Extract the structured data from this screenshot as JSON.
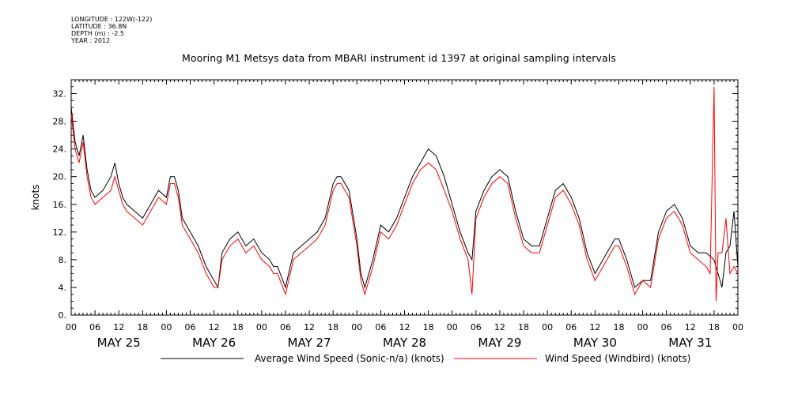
{
  "header": {
    "longitude": "LONGITUDE : 122W(-122)",
    "latitude": "LATITUDE : 36.8N",
    "depth": "DEPTH (m) : -2.5",
    "year": "YEAR : 2012"
  },
  "chart_data": {
    "type": "line",
    "title": "Mooring M1 Metsys data from MBARI instrument id 1397 at original sampling intervals",
    "ylabel": "knots",
    "xlabel": "",
    "ylim": [
      0,
      34
    ],
    "xlim_hours": [
      0,
      168
    ],
    "yticks": [
      "0.",
      "4.",
      "8.",
      "12.",
      "16.",
      "20.",
      "24.",
      "28.",
      "32."
    ],
    "yticks_values": [
      0,
      4,
      8,
      12,
      16,
      20,
      24,
      28,
      32
    ],
    "hour_ticks": [
      "00",
      "06",
      "12",
      "18",
      "00",
      "06",
      "12",
      "18",
      "00",
      "06",
      "12",
      "18",
      "00",
      "06",
      "12",
      "18",
      "00",
      "06",
      "12",
      "18",
      "00",
      "06",
      "12",
      "18",
      "00",
      "06",
      "12",
      "18",
      "00"
    ],
    "days": [
      "MAY 25",
      "MAY 26",
      "MAY 27",
      "MAY 28",
      "MAY 29",
      "MAY 30",
      "MAY 31"
    ],
    "grid": false,
    "legend_position": "bottom",
    "series": [
      {
        "name": "Average Wind Speed (Sonic-n/a) (knots)",
        "color": "#000000",
        "x": [
          0,
          1,
          2,
          3,
          4,
          5,
          6,
          8,
          10,
          11,
          12,
          13,
          14,
          16,
          18,
          20,
          22,
          24,
          25,
          26,
          27,
          28,
          30,
          32,
          34,
          36,
          37,
          38,
          40,
          42,
          44,
          46,
          48,
          50,
          51,
          52,
          54,
          56,
          58,
          60,
          62,
          64,
          66,
          67,
          68,
          70,
          72,
          73,
          74,
          76,
          78,
          80,
          82,
          84,
          86,
          88,
          90,
          92,
          94,
          96,
          98,
          100,
          101,
          102,
          104,
          106,
          108,
          110,
          112,
          114,
          116,
          118,
          120,
          122,
          124,
          126,
          128,
          130,
          132,
          134,
          136,
          137,
          138,
          140,
          142,
          144,
          146,
          148,
          150,
          152,
          154,
          156,
          158,
          160,
          162,
          163,
          164,
          165,
          166,
          167,
          168
        ],
        "y": [
          30,
          25,
          23,
          26,
          21,
          18,
          17,
          18,
          20,
          22,
          19,
          17,
          16,
          15,
          14,
          16,
          18,
          17,
          20,
          20,
          18,
          14,
          12,
          10,
          7,
          5,
          4,
          9,
          11,
          12,
          10,
          11,
          9,
          8,
          7,
          7,
          4,
          9,
          10,
          11,
          12,
          14,
          19,
          20,
          20,
          18,
          11,
          6,
          4,
          8,
          13,
          12,
          14,
          17,
          20,
          22,
          24,
          23,
          20,
          16,
          12,
          9,
          8,
          15,
          18,
          20,
          21,
          20,
          15,
          11,
          10,
          10,
          14,
          18,
          19,
          17,
          14,
          9,
          6,
          8,
          10,
          11,
          11,
          8,
          4,
          5,
          5,
          12,
          15,
          16,
          14,
          10,
          9,
          9,
          8,
          6,
          4,
          9,
          10,
          15,
          7
        ]
      },
      {
        "name": "Wind Speed (Windbird) (knots)",
        "color": "#ff0000",
        "x": [
          0,
          1,
          2,
          3,
          4,
          5,
          6,
          8,
          10,
          11,
          12,
          13,
          14,
          16,
          18,
          20,
          22,
          24,
          25,
          26,
          27,
          28,
          30,
          32,
          34,
          36,
          37,
          38,
          40,
          42,
          44,
          46,
          48,
          50,
          51,
          52,
          54,
          56,
          58,
          60,
          62,
          64,
          66,
          67,
          68,
          70,
          72,
          73,
          74,
          76,
          78,
          80,
          82,
          84,
          86,
          88,
          90,
          92,
          94,
          96,
          98,
          100,
          101,
          102,
          104,
          106,
          108,
          110,
          112,
          114,
          116,
          118,
          120,
          122,
          124,
          126,
          128,
          130,
          132,
          134,
          136,
          137,
          138,
          140,
          142,
          144,
          146,
          148,
          150,
          152,
          154,
          156,
          158,
          160,
          161,
          162,
          162.5,
          163,
          164,
          165,
          166,
          167,
          168
        ],
        "y": [
          29,
          24,
          22,
          25,
          20,
          17,
          16,
          17,
          18,
          20,
          18,
          16,
          15,
          14,
          13,
          15,
          17,
          16,
          19,
          19,
          17,
          13,
          11,
          9,
          6,
          4,
          4,
          8,
          10,
          11,
          9,
          10,
          8,
          7,
          6,
          6,
          3,
          8,
          9,
          10,
          11,
          13,
          18,
          19,
          19,
          17,
          10,
          5,
          3,
          7,
          12,
          11,
          13,
          16,
          19,
          21,
          22,
          21,
          18,
          15,
          11,
          8,
          3,
          14,
          17,
          19,
          20,
          19,
          14,
          10,
          9,
          9,
          13,
          17,
          18,
          16,
          13,
          8,
          5,
          7,
          9,
          10,
          10,
          7,
          3,
          5,
          4,
          11,
          14,
          15,
          13,
          9,
          8,
          7,
          6,
          33,
          2,
          9,
          9,
          14,
          6,
          7,
          6
        ]
      }
    ]
  }
}
